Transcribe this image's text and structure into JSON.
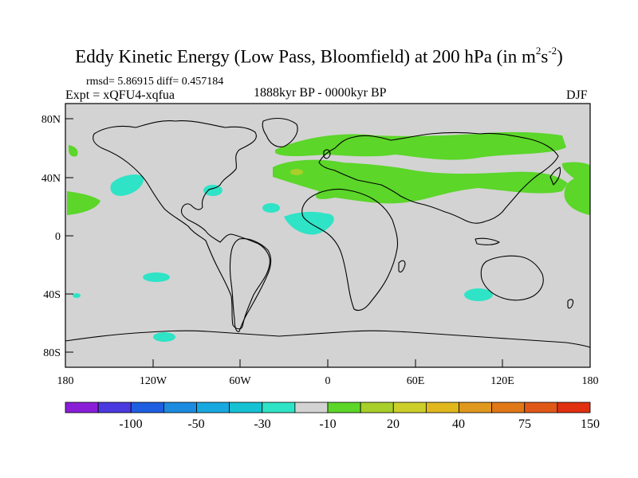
{
  "title": {
    "main": "Eddy Kinetic Energy (Low Pass, Bloomfield) at 200 hPa (in m",
    "sup1": "2",
    "mid": "s",
    "sup2": "-2",
    "end": ")"
  },
  "stats": "rmsd= 5.86915 diff= 0.457184",
  "experiment": "Expt = xQFU4-xqfua",
  "period": "1888kyr BP - 0000kyr BP",
  "season": "DJF",
  "axes": {
    "lat_ticks": [
      "80N",
      "40N",
      "0",
      "40S",
      "80S"
    ],
    "lon_ticks": [
      "180",
      "120W",
      "60W",
      "0",
      "60E",
      "120E",
      "180"
    ]
  },
  "colors": {
    "background": "#d3d3d3",
    "positive_small": "#5bd629",
    "positive_mid": "#a8cf2a",
    "negative_small": "#2fe3c6",
    "coast": "#000000"
  },
  "colorbar": {
    "colors": [
      "#8a1ed8",
      "#4a3ae0",
      "#1f5ee0",
      "#1c8be0",
      "#18a8e0",
      "#14c2d4",
      "#2fe3c6",
      "#d3d3d3",
      "#5bd629",
      "#a8cf2a",
      "#cccf2a",
      "#e0b81e",
      "#e0981e",
      "#e07818",
      "#e05818",
      "#e03010"
    ],
    "labels": [
      "-100",
      "-50",
      "-30",
      "-10",
      "20",
      "40",
      "75",
      "150"
    ]
  }
}
